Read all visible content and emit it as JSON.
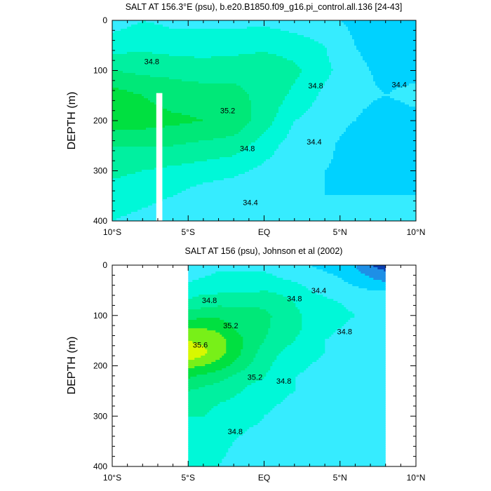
{
  "chart_data": [
    {
      "type": "heatmap",
      "subtype": "filled-contour",
      "title": "SALT AT 156.3°E (psu), b.e20.B1850.f09_g16.pi_control.all.136 [24-43]",
      "ylabel": "DEPTH (m)",
      "xlabel": "",
      "x_ticks": [
        "10°S",
        "5°S",
        "EQ",
        "5°N",
        "10°N"
      ],
      "x_tick_values": [
        -10,
        -5,
        0,
        5,
        10
      ],
      "y_ticks": [
        "0",
        "100",
        "200",
        "300",
        "400"
      ],
      "y_tick_values": [
        0,
        100,
        200,
        300,
        400
      ],
      "xlim": [
        -10,
        10
      ],
      "ylim": [
        400,
        0
      ],
      "y_inverted": true,
      "data_coverage_x": [
        -10,
        10
      ],
      "missing_column_x": [
        -7.1,
        -6.7
      ],
      "missing_column_depth_from": 145,
      "contour_interval": 0.2,
      "contour_labels": [
        {
          "text": "34.8",
          "x": -7.4,
          "depth": 82
        },
        {
          "text": "34.8",
          "x": 3.4,
          "depth": 130
        },
        {
          "text": "34.4",
          "x": 8.9,
          "depth": 128
        },
        {
          "text": "35.2",
          "x": -2.4,
          "depth": 180
        },
        {
          "text": "34.8",
          "x": -1.1,
          "depth": 255
        },
        {
          "text": "34.4",
          "x": 3.3,
          "depth": 242
        },
        {
          "text": "34.4",
          "x": -0.9,
          "depth": 363
        }
      ],
      "field": {
        "x": [
          -10,
          -8,
          -6,
          -4,
          -2,
          0,
          2,
          4,
          6,
          8,
          10
        ],
        "depth": [
          0,
          50,
          100,
          150,
          200,
          250,
          300,
          350,
          400
        ],
        "salinity": [
          [
            34.5,
            34.6,
            34.55,
            34.55,
            34.55,
            34.55,
            34.5,
            34.45,
            34.35,
            34.3,
            34.3
          ],
          [
            34.7,
            34.75,
            34.7,
            34.7,
            34.7,
            34.75,
            34.7,
            34.6,
            34.4,
            34.3,
            34.3
          ],
          [
            35.0,
            34.95,
            34.95,
            34.9,
            34.95,
            34.95,
            34.85,
            34.65,
            34.45,
            34.35,
            34.35
          ],
          [
            35.3,
            35.2,
            35.1,
            35.1,
            35.05,
            34.95,
            34.75,
            34.55,
            34.45,
            34.4,
            34.45
          ],
          [
            35.3,
            35.3,
            35.25,
            35.2,
            35.15,
            34.9,
            34.6,
            34.5,
            34.4,
            34.3,
            34.35
          ],
          [
            35.0,
            35.0,
            35.0,
            34.95,
            34.9,
            34.7,
            34.5,
            34.45,
            34.3,
            34.25,
            34.3
          ],
          [
            34.85,
            34.8,
            34.75,
            34.7,
            34.65,
            34.55,
            34.45,
            34.4,
            34.35,
            34.35,
            34.35
          ],
          [
            34.7,
            34.65,
            34.6,
            34.5,
            34.45,
            34.4,
            34.4,
            34.4,
            34.4,
            34.4,
            34.4
          ],
          [
            34.6,
            34.55,
            34.5,
            34.45,
            34.4,
            34.4,
            34.4,
            34.4,
            34.4,
            34.4,
            34.4
          ]
        ]
      }
    },
    {
      "type": "heatmap",
      "subtype": "filled-contour",
      "title": "SALT AT 156 (psu), Johnson et al (2002)",
      "ylabel": "DEPTH (m)",
      "xlabel": "",
      "x_ticks": [
        "10°S",
        "5°S",
        "EQ",
        "5°N",
        "10°N"
      ],
      "x_tick_values": [
        -10,
        -5,
        0,
        5,
        10
      ],
      "y_ticks": [
        "0",
        "100",
        "200",
        "300",
        "400"
      ],
      "y_tick_values": [
        0,
        100,
        200,
        300,
        400
      ],
      "xlim": [
        -10,
        10
      ],
      "ylim": [
        400,
        0
      ],
      "y_inverted": true,
      "data_coverage_x": [
        -5,
        8
      ],
      "contour_interval": 0.2,
      "contour_labels": [
        {
          "text": "34.8",
          "x": -3.6,
          "depth": 70
        },
        {
          "text": "34.4",
          "x": 3.6,
          "depth": 50
        },
        {
          "text": "34.8",
          "x": 2.0,
          "depth": 66
        },
        {
          "text": "35.2",
          "x": -2.2,
          "depth": 120
        },
        {
          "text": "34.8",
          "x": 5.3,
          "depth": 132
        },
        {
          "text": "35.6",
          "x": -4.2,
          "depth": 158
        },
        {
          "text": "35.2",
          "x": -0.6,
          "depth": 222
        },
        {
          "text": "34.8",
          "x": 1.3,
          "depth": 230
        },
        {
          "text": "34.8",
          "x": -1.9,
          "depth": 330
        }
      ],
      "field": {
        "x": [
          -5,
          -4,
          -3,
          -2,
          -1,
          0,
          1,
          2,
          3,
          4,
          5,
          6,
          7,
          8
        ],
        "depth": [
          0,
          25,
          50,
          75,
          100,
          125,
          150,
          175,
          200,
          225,
          250,
          275,
          300,
          350,
          400
        ],
        "salinity": [
          [
            34.5,
            34.5,
            34.55,
            34.55,
            34.55,
            34.55,
            34.5,
            34.45,
            34.4,
            34.35,
            34.3,
            34.2,
            34.0,
            33.9
          ],
          [
            34.55,
            34.6,
            34.65,
            34.65,
            34.65,
            34.65,
            34.6,
            34.55,
            34.5,
            34.45,
            34.4,
            34.3,
            34.2,
            34.1
          ],
          [
            34.7,
            34.75,
            34.75,
            34.75,
            34.75,
            34.8,
            34.75,
            34.7,
            34.6,
            34.55,
            34.5,
            34.45,
            34.4,
            34.4
          ],
          [
            34.85,
            34.9,
            34.95,
            34.95,
            34.95,
            34.95,
            34.9,
            34.8,
            34.7,
            34.65,
            34.6,
            34.55,
            34.5,
            34.5
          ],
          [
            35.1,
            35.15,
            35.15,
            35.1,
            35.1,
            35.05,
            34.95,
            34.85,
            34.75,
            34.7,
            34.65,
            34.6,
            34.55,
            34.55
          ],
          [
            35.4,
            35.4,
            35.35,
            35.2,
            35.1,
            35.05,
            34.9,
            34.85,
            34.75,
            34.65,
            34.6,
            34.55,
            34.55,
            34.55
          ],
          [
            35.6,
            35.55,
            35.5,
            35.3,
            35.15,
            35.0,
            34.9,
            34.8,
            34.7,
            34.6,
            34.55,
            34.55,
            34.55,
            34.55
          ],
          [
            35.8,
            35.65,
            35.5,
            35.3,
            35.1,
            34.9,
            34.8,
            34.7,
            34.65,
            34.6,
            34.55,
            34.55,
            34.55,
            34.55
          ],
          [
            35.45,
            35.4,
            35.3,
            35.15,
            35.0,
            34.85,
            34.75,
            34.65,
            34.6,
            34.55,
            34.55,
            34.55,
            34.55,
            34.55
          ],
          [
            35.2,
            35.1,
            35.05,
            34.95,
            34.85,
            34.8,
            34.7,
            34.6,
            34.55,
            34.55,
            34.55,
            34.5,
            34.5,
            34.5
          ],
          [
            35.0,
            34.95,
            34.9,
            34.85,
            34.75,
            34.7,
            34.65,
            34.6,
            34.55,
            34.55,
            34.5,
            34.5,
            34.5,
            34.5
          ],
          [
            34.9,
            34.85,
            34.8,
            34.75,
            34.7,
            34.65,
            34.6,
            34.55,
            34.55,
            34.5,
            34.5,
            34.5,
            34.45,
            34.45
          ],
          [
            34.8,
            34.8,
            34.75,
            34.7,
            34.65,
            34.6,
            34.55,
            34.55,
            34.5,
            34.5,
            34.5,
            34.45,
            34.45,
            34.4
          ],
          [
            34.7,
            34.7,
            34.65,
            34.6,
            34.55,
            34.55,
            34.5,
            34.5,
            34.5,
            34.5,
            34.5,
            34.45,
            34.45,
            34.45
          ],
          [
            34.65,
            34.65,
            34.6,
            34.55,
            34.55,
            34.5,
            34.5,
            34.5,
            34.5,
            34.5,
            34.5,
            34.5,
            34.5,
            34.5
          ]
        ]
      }
    }
  ],
  "palette": {
    "levels": [
      34.0,
      34.2,
      34.4,
      34.6,
      34.8,
      35.0,
      35.2,
      35.4,
      35.6,
      35.8
    ],
    "colors": [
      "#0a3fb0",
      "#1e8fe6",
      "#00d2ff",
      "#36ecff",
      "#00f8d8",
      "#00f0a0",
      "#00e878",
      "#00e040",
      "#78f018",
      "#d8f800",
      "#fff060"
    ]
  }
}
